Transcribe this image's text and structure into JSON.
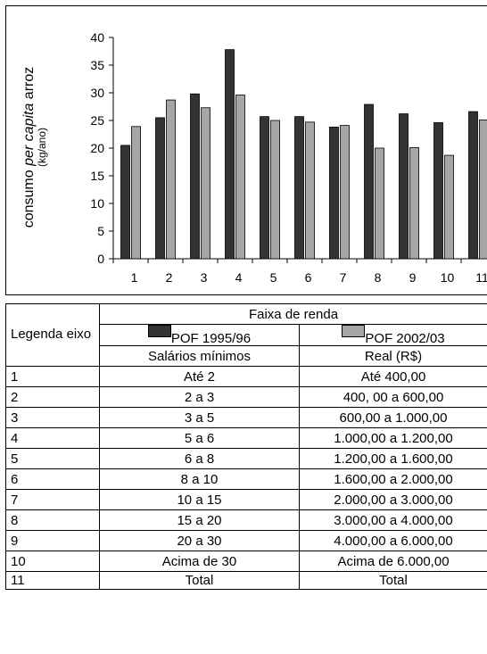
{
  "chart_data": {
    "type": "bar",
    "ylabel_parts": [
      "consumo ",
      "per capita",
      " arroz"
    ],
    "ylabel_unit": "(kg/ano)",
    "categories": [
      "1",
      "2",
      "3",
      "4",
      "5",
      "6",
      "7",
      "8",
      "9",
      "10",
      "11"
    ],
    "yticks": [
      "0",
      "5",
      "10",
      "15",
      "20",
      "25",
      "30",
      "35",
      "40"
    ],
    "ylim": [
      0,
      40
    ],
    "series": [
      {
        "name": "POF 1995/96",
        "color": "#333333",
        "values": [
          20.5,
          25.5,
          29.8,
          37.8,
          25.7,
          25.7,
          23.8,
          27.9,
          26.2,
          24.6,
          26.6
        ]
      },
      {
        "name": "POF 2002/03",
        "color": "#a6a6a6",
        "values": [
          23.9,
          28.7,
          27.3,
          29.6,
          25.0,
          24.7,
          24.1,
          20.0,
          20.1,
          18.7,
          25.1
        ]
      }
    ]
  },
  "legend_table": {
    "header_legend": "Legenda eixo",
    "header_group": "Faixa de renda",
    "series1_label": "POF 1995/96",
    "series2_label": "POF 2002/03",
    "col1_subheader": "Salários mínimos",
    "col2_subheader": "Real (R$)",
    "rows": [
      {
        "axis": "1",
        "min_wage": "Até 2",
        "real": "Até 400,00"
      },
      {
        "axis": "2",
        "min_wage": "2 a 3",
        "real": "400, 00 a 600,00"
      },
      {
        "axis": "3",
        "min_wage": "3 a 5",
        "real": "600,00 a 1.000,00"
      },
      {
        "axis": "4",
        "min_wage": "5 a 6",
        "real": "1.000,00 a 1.200,00"
      },
      {
        "axis": "5",
        "min_wage": "6 a 8",
        "real": "1.200,00 a 1.600,00"
      },
      {
        "axis": "6",
        "min_wage": "8 a 10",
        "real": "1.600,00 a 2.000,00"
      },
      {
        "axis": "7",
        "min_wage": "10 a 15",
        "real": "2.000,00 a 3.000,00"
      },
      {
        "axis": "8",
        "min_wage": "15 a 20",
        "real": "3.000,00 a 4.000,00"
      },
      {
        "axis": "9",
        "min_wage": "20 a 30",
        "real": "4.000,00 a 6.000,00"
      },
      {
        "axis": "10",
        "min_wage": "Acima de 30",
        "real": "Acima de 6.000,00"
      },
      {
        "axis": "11",
        "min_wage": "Total",
        "real": "Total"
      }
    ]
  }
}
